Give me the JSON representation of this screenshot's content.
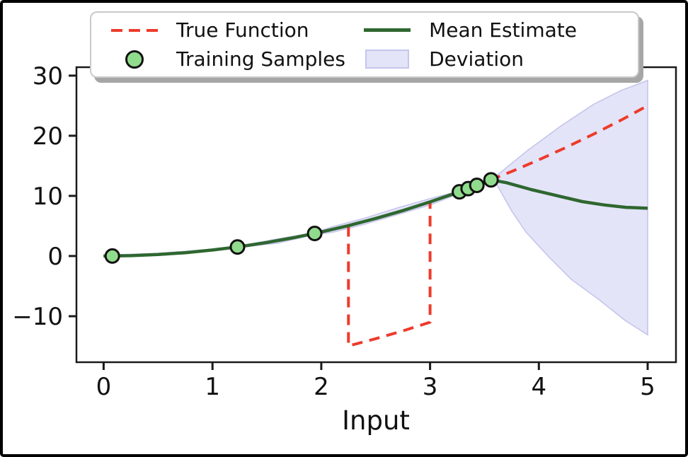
{
  "figure": {
    "background": "#ffffff",
    "frame_color": "#000000",
    "axis_color": "#1a1a1a",
    "text_color": "#111111"
  },
  "chart_data": {
    "type": "line",
    "title": "",
    "xlabel": "Input",
    "ylabel": "",
    "xlim": [
      -0.25,
      5.26
    ],
    "ylim": [
      -17.65,
      31.4
    ],
    "grid": false,
    "legend_position": "upper center",
    "x_ticks": [
      0,
      1,
      2,
      3,
      4,
      5
    ],
    "x_tick_labels": [
      "0",
      "1",
      "2",
      "3",
      "4",
      "5"
    ],
    "y_ticks": [
      -10,
      0,
      10,
      20,
      30
    ],
    "y_tick_labels": [
      "−10",
      "0",
      "10",
      "20",
      "30"
    ],
    "series": [
      {
        "name": "Deviation",
        "type": "band",
        "fill": "#e4e4f8",
        "edge": "#c5c5ec",
        "upper": [
          [
            0,
            0.15
          ],
          [
            0.5,
            0.45
          ],
          [
            1,
            1.15
          ],
          [
            1.23,
            1.65
          ],
          [
            1.6,
            2.85
          ],
          [
            1.94,
            3.9
          ],
          [
            2.1,
            4.85
          ],
          [
            2.4,
            6.3
          ],
          [
            2.7,
            8.0
          ],
          [
            3.0,
            9.55
          ],
          [
            3.27,
            10.8
          ],
          [
            3.43,
            11.9
          ],
          [
            3.56,
            12.8
          ],
          [
            3.6,
            13.2
          ],
          [
            3.9,
            17.6
          ],
          [
            4.2,
            21.6
          ],
          [
            4.5,
            25.2
          ],
          [
            4.75,
            27.5
          ],
          [
            5,
            29.2
          ]
        ],
        "lower": [
          [
            0,
            -0.1
          ],
          [
            0.5,
            0.1
          ],
          [
            1,
            0.85
          ],
          [
            1.23,
            1.4
          ],
          [
            1.6,
            2.15
          ],
          [
            1.94,
            3.6
          ],
          [
            2.1,
            3.95
          ],
          [
            2.4,
            5.3
          ],
          [
            2.7,
            6.9
          ],
          [
            3.0,
            8.5
          ],
          [
            3.27,
            10.4
          ],
          [
            3.43,
            11.6
          ],
          [
            3.56,
            12.5
          ],
          [
            3.6,
            12.3
          ],
          [
            3.75,
            7.5
          ],
          [
            3.88,
            4.0
          ],
          [
            4.1,
            -0.3
          ],
          [
            4.3,
            -3.9
          ],
          [
            4.55,
            -7.2
          ],
          [
            4.8,
            -10.8
          ],
          [
            5,
            -13.1
          ]
        ]
      },
      {
        "name": "True Function",
        "type": "line",
        "style": "dashed",
        "color": "#ee3b2c",
        "width": 4,
        "points": [
          [
            0,
            0
          ],
          [
            0.25,
            0.06
          ],
          [
            0.5,
            0.25
          ],
          [
            0.75,
            0.56
          ],
          [
            1,
            1
          ],
          [
            1.25,
            1.56
          ],
          [
            1.5,
            2.25
          ],
          [
            1.75,
            3.06
          ],
          [
            2,
            4
          ],
          [
            2.25,
            5.06
          ],
          [
            2.25,
            -14.94
          ],
          [
            2.5,
            -13.75
          ],
          [
            2.75,
            -12.44
          ],
          [
            3,
            -11
          ],
          [
            3,
            9
          ],
          [
            3.25,
            10.56
          ],
          [
            3.5,
            12.25
          ],
          [
            3.75,
            14.06
          ],
          [
            4,
            16
          ],
          [
            4.25,
            18.06
          ],
          [
            4.5,
            20.25
          ],
          [
            4.75,
            22.56
          ],
          [
            5,
            25
          ]
        ]
      },
      {
        "name": "Mean Estimate",
        "type": "line",
        "style": "solid",
        "color": "#2e672f",
        "width": 4.5,
        "points": [
          [
            0,
            0
          ],
          [
            0.25,
            0.06
          ],
          [
            0.5,
            0.25
          ],
          [
            0.75,
            0.56
          ],
          [
            1,
            1
          ],
          [
            1.25,
            1.56
          ],
          [
            1.5,
            2.25
          ],
          [
            1.75,
            3.06
          ],
          [
            2,
            4
          ],
          [
            2.25,
            5.06
          ],
          [
            2.5,
            6.25
          ],
          [
            2.75,
            7.56
          ],
          [
            3,
            9
          ],
          [
            3.25,
            10.56
          ],
          [
            3.4,
            11.56
          ],
          [
            3.56,
            12.67
          ],
          [
            3.7,
            12.2
          ],
          [
            3.93,
            11.05
          ],
          [
            4.2,
            9.9
          ],
          [
            4.4,
            9.05
          ],
          [
            4.6,
            8.5
          ],
          [
            4.8,
            8.1
          ],
          [
            5,
            7.95
          ]
        ]
      },
      {
        "name": "Training Samples",
        "type": "scatter",
        "fill": "#90dc8c",
        "edge": "#111111",
        "radius": 9.5,
        "points": [
          [
            0.08,
            0.01
          ],
          [
            1.23,
            1.51
          ],
          [
            1.94,
            3.76
          ],
          [
            3.27,
            10.69
          ],
          [
            3.35,
            11.22
          ],
          [
            3.43,
            11.76
          ],
          [
            3.56,
            12.67
          ]
        ]
      }
    ]
  },
  "legend": {
    "items": [
      {
        "label": "True Function",
        "marker": "dashed-line",
        "color": "#ee3b2c"
      },
      {
        "label": "Training Samples",
        "marker": "circle",
        "fill": "#90dc8c",
        "edge": "#111111"
      },
      {
        "label": "Mean Estimate",
        "marker": "solid-line",
        "color": "#2e672f"
      },
      {
        "label": "Deviation",
        "marker": "patch",
        "fill": "#e4e4f8",
        "edge": "#c5c5ec"
      }
    ]
  }
}
